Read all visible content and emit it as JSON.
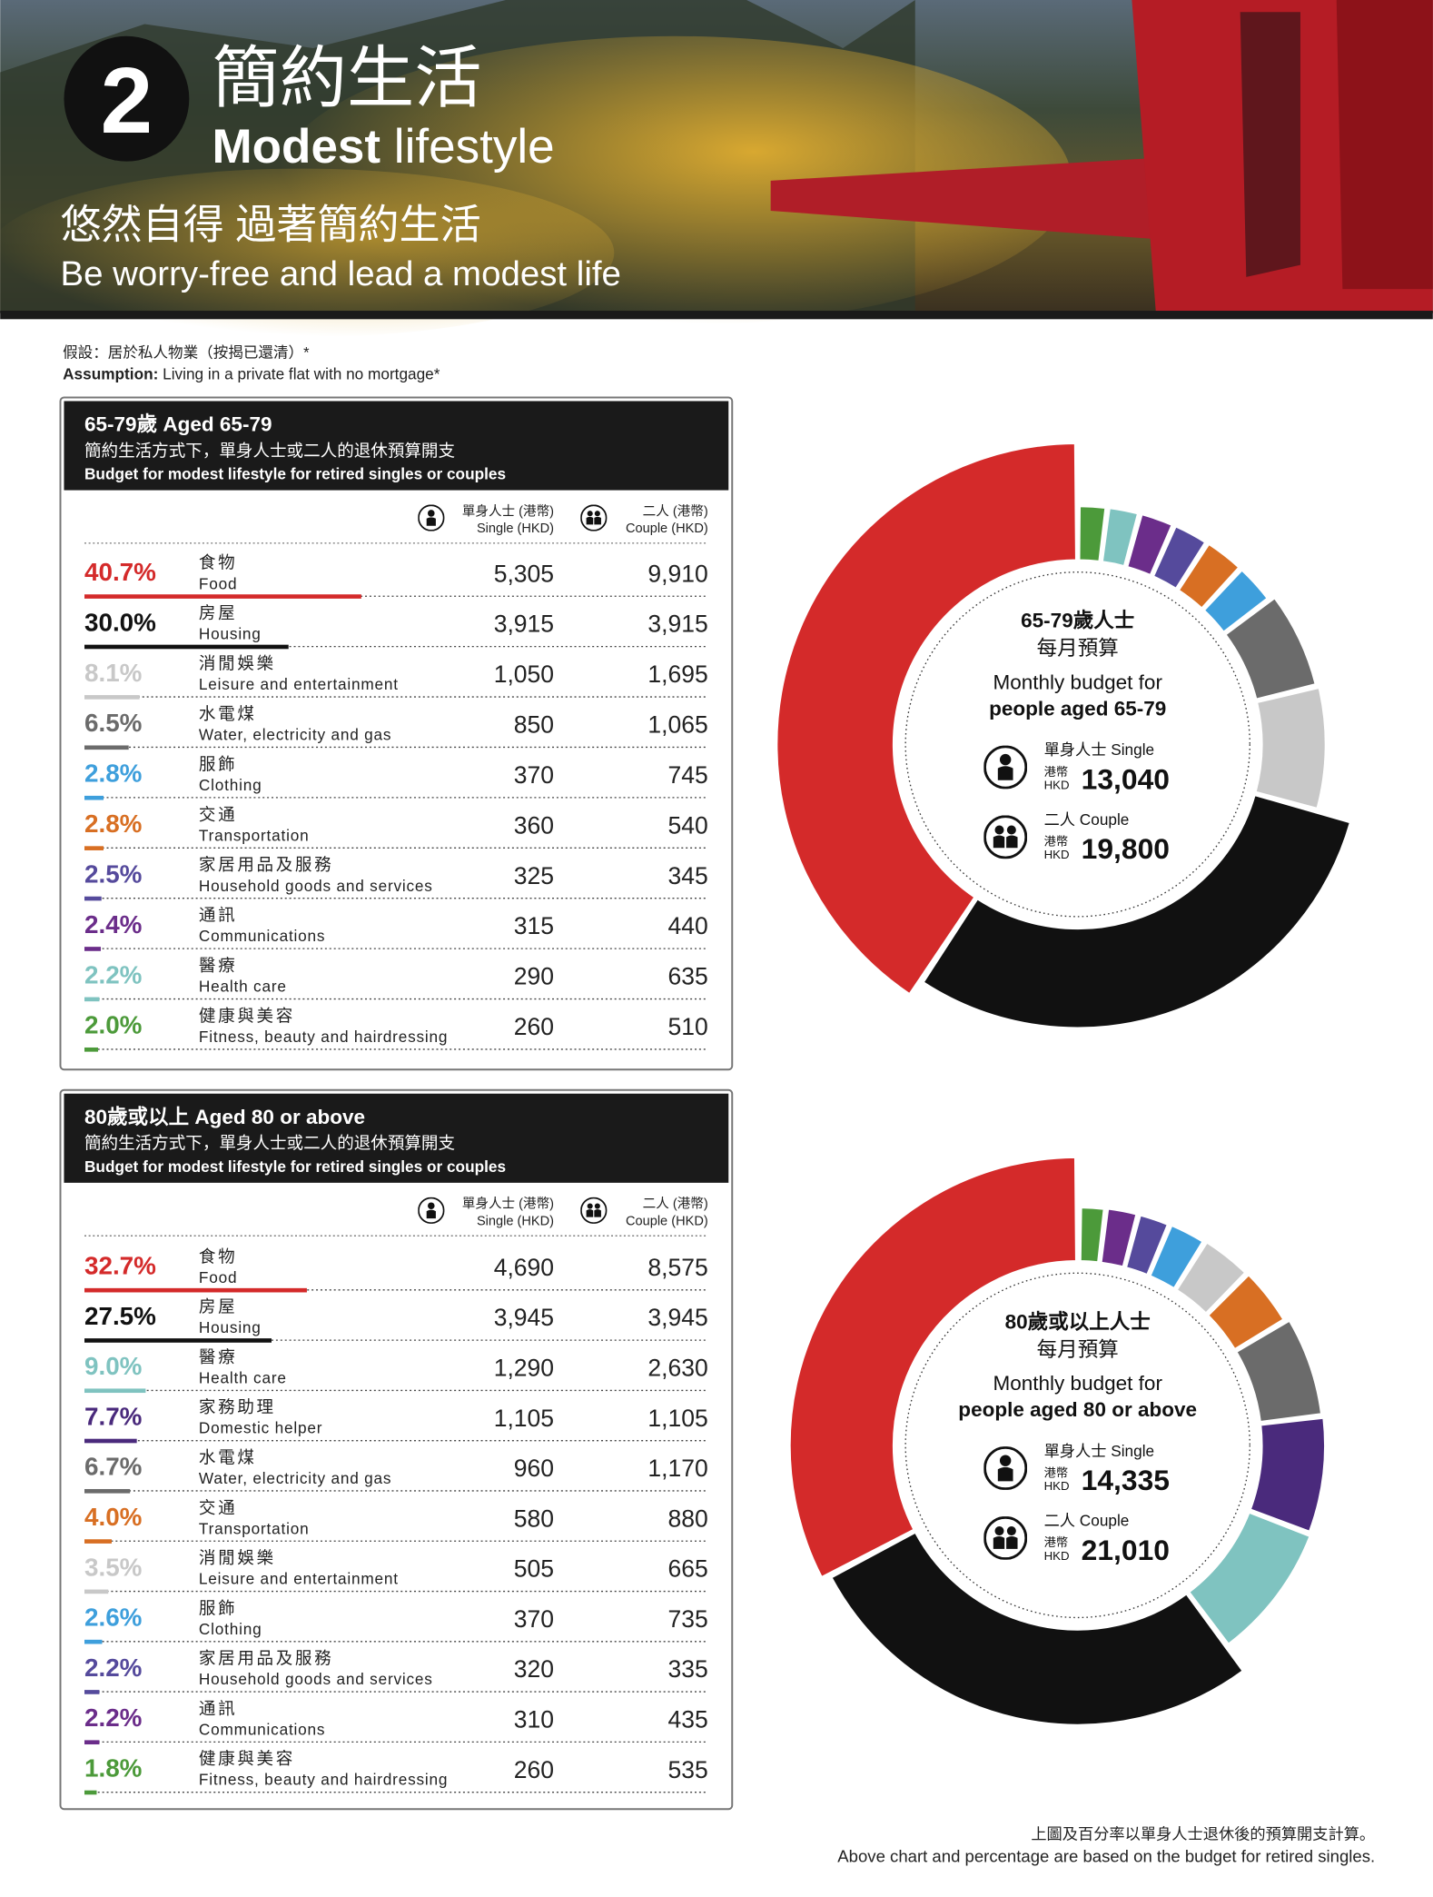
{
  "header": {
    "number": "2",
    "title_zh": "簡約生活",
    "title_en_bold": "Modest",
    "title_en_light": "lifestyle",
    "subtitle_zh": "悠然自得 過著簡約生活",
    "subtitle_en": "Be worry-free and lead a modest life"
  },
  "assumption": {
    "zh": "假設：居於私人物業（按揭已還清）*",
    "en_bold": "Assumption:",
    "en": " Living in a private flat with no mortgage*"
  },
  "footnote": {
    "zh": "上圖及百分率以單身人士退休後的預算開支計算。",
    "en": "Above chart and percentage are based on the budget for retired singles."
  },
  "chart_data": [
    {
      "type": "donut",
      "title": "65-79歲 Aged 65-79",
      "subtitle_zh": "簡約生活方式下，單身人士或二人的退休預算開支",
      "subtitle_en": "Budget for modest lifestyle for retired singles or couples",
      "column_headers": {
        "single_zh": "單身人士 (港幣)",
        "single_en": "Single (HKD)",
        "couple_zh": "二人 (港幣)",
        "couple_en": "Couple (HKD)"
      },
      "categories_zh": [
        "食物",
        "房屋",
        "消閒娛樂",
        "水電煤",
        "服飾",
        "交通",
        "家居用品及服務",
        "通訊",
        "醫療",
        "健康與美容"
      ],
      "categories": [
        "Food",
        "Housing",
        "Leisure and entertainment",
        "Water, electricity and gas",
        "Clothing",
        "Transportation",
        "Household goods and services",
        "Communications",
        "Health care",
        "Fitness, beauty and hairdressing"
      ],
      "values": [
        40.7,
        30.0,
        8.1,
        6.5,
        2.8,
        2.8,
        2.5,
        2.4,
        2.2,
        2.0
      ],
      "value_labels": [
        "40.7%",
        "30.0%",
        "8.1%",
        "6.5%",
        "2.8%",
        "2.8%",
        "2.5%",
        "2.4%",
        "2.2%",
        "2.0%"
      ],
      "colors": [
        "#d42a2a",
        "#111111",
        "#c8c8c8",
        "#6b6b6b",
        "#3e9fdc",
        "#d86f23",
        "#554a9c",
        "#6b2d8a",
        "#7fc3c0",
        "#4c9a3a"
      ],
      "single": [
        "5,305",
        "3,915",
        "1,050",
        "850",
        "370",
        "360",
        "325",
        "315",
        "290",
        "260"
      ],
      "couple": [
        "9,910",
        "3,915",
        "1,695",
        "1,065",
        "745",
        "540",
        "345",
        "440",
        "635",
        "510"
      ],
      "center": {
        "line1": "65-79歲人士",
        "line2": "每月預算",
        "line3": "Monthly budget for",
        "line4": "people aged 65-79",
        "single_label": "單身人士 Single",
        "couple_label": "二人 Couple",
        "currency_zh": "港幣",
        "currency_en": "HKD",
        "single_total": "13,040",
        "couple_total": "19,800"
      }
    },
    {
      "type": "donut",
      "title": "80歲或以上 Aged 80 or above",
      "subtitle_zh": "簡約生活方式下，單身人士或二人的退休預算開支",
      "subtitle_en": "Budget for modest lifestyle for retired singles or couples",
      "column_headers": {
        "single_zh": "單身人士 (港幣)",
        "single_en": "Single (HKD)",
        "couple_zh": "二人 (港幣)",
        "couple_en": "Couple (HKD)"
      },
      "categories_zh": [
        "食物",
        "房屋",
        "醫療",
        "家務助理",
        "水電煤",
        "交通",
        "消閒娛樂",
        "服飾",
        "家居用品及服務",
        "通訊",
        "健康與美容"
      ],
      "categories": [
        "Food",
        "Housing",
        "Health care",
        "Domestic helper",
        "Water, electricity and gas",
        "Transportation",
        "Leisure and entertainment",
        "Clothing",
        "Household goods and services",
        "Communications",
        "Fitness, beauty and hairdressing"
      ],
      "values": [
        32.7,
        27.5,
        9.0,
        7.7,
        6.7,
        4.0,
        3.5,
        2.6,
        2.2,
        2.2,
        1.8
      ],
      "value_labels": [
        "32.7%",
        "27.5%",
        "9.0%",
        "7.7%",
        "6.7%",
        "4.0%",
        "3.5%",
        "2.6%",
        "2.2%",
        "2.2%",
        "1.8%"
      ],
      "colors": [
        "#d42a2a",
        "#111111",
        "#7fc3c0",
        "#4a2a7c",
        "#6b6b6b",
        "#d86f23",
        "#c8c8c8",
        "#3e9fdc",
        "#554a9c",
        "#6b2d8a",
        "#4c9a3a"
      ],
      "single": [
        "4,690",
        "3,945",
        "1,290",
        "1,105",
        "960",
        "580",
        "505",
        "370",
        "320",
        "310",
        "260"
      ],
      "couple": [
        "8,575",
        "3,945",
        "2,630",
        "1,105",
        "1,170",
        "880",
        "665",
        "735",
        "335",
        "435",
        "535"
      ],
      "center": {
        "line1": "80歲或以上人士",
        "line2": "每月預算",
        "line3": "Monthly budget for",
        "line4": "people aged 80 or above",
        "single_label": "單身人士 Single",
        "couple_label": "二人 Couple",
        "currency_zh": "港幣",
        "currency_en": "HKD",
        "single_total": "14,335",
        "couple_total": "21,010"
      }
    }
  ]
}
